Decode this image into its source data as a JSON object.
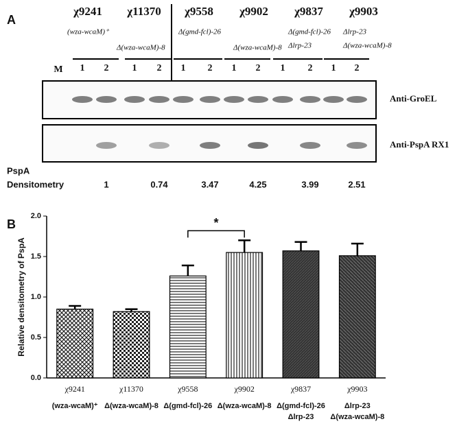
{
  "panel_a": {
    "label": "A",
    "strains": [
      "χ9241",
      "χ11370",
      "χ9558",
      "χ9902",
      "χ9837",
      "χ9903"
    ],
    "genotypes": [
      [
        "(wza-wcaM)⁺"
      ],
      [
        "Δ(wza-wcaM)-8"
      ],
      [
        "Δ(gmd-fcl)-26"
      ],
      [
        "Δ(wza-wcaM)-8"
      ],
      [
        "Δ(gmd-fcl)-26",
        "Δlrp-23"
      ],
      [
        "Δlrp-23",
        "Δ(wza-wcaM)-8"
      ]
    ],
    "marker_lane": "M",
    "lanes": [
      "1",
      "2"
    ],
    "blots": [
      "Anti-GroEL",
      "Anti-PspA RX1"
    ],
    "densitometry_label": [
      "PspA",
      "Densitometry"
    ],
    "densitometry": [
      "1",
      "0.74",
      "3.47",
      "4.25",
      "3.99",
      "2.51"
    ]
  },
  "chart_data": {
    "type": "bar",
    "label": "B",
    "y_label": "Relative densitometry of PspA",
    "categories": [
      "χ9241",
      "χ11370",
      "χ9558",
      "χ9902",
      "χ9837",
      "χ9903"
    ],
    "category_genotypes": [
      [
        "(wza-wcaM)⁺"
      ],
      [
        "Δ(wza-wcaM)-8"
      ],
      [
        "Δ(gmd-fcl)-26"
      ],
      [
        "Δ(wza-wcaM)-8"
      ],
      [
        "Δ(gmd-fcl)-26",
        "Δlrp-23"
      ],
      [
        "Δlrp-23",
        "Δ(wza-wcaM)-8"
      ]
    ],
    "values": [
      0.85,
      0.82,
      1.26,
      1.55,
      1.57,
      1.51
    ],
    "errors": [
      0.04,
      0.03,
      0.13,
      0.15,
      0.11,
      0.15
    ],
    "patterns": [
      "diamond",
      "checker",
      "horizontal",
      "vertical",
      "dense",
      "diagonal"
    ],
    "ylim": [
      0,
      2.0
    ],
    "yticks": [
      {
        "value": 0,
        "label": "0.0"
      },
      0.5,
      {
        "value": 1,
        "label": "1.0"
      },
      1.5,
      {
        "value": 2,
        "label": "2.0"
      }
    ],
    "annotation": {
      "label": "*",
      "between": [
        2,
        3
      ]
    }
  }
}
